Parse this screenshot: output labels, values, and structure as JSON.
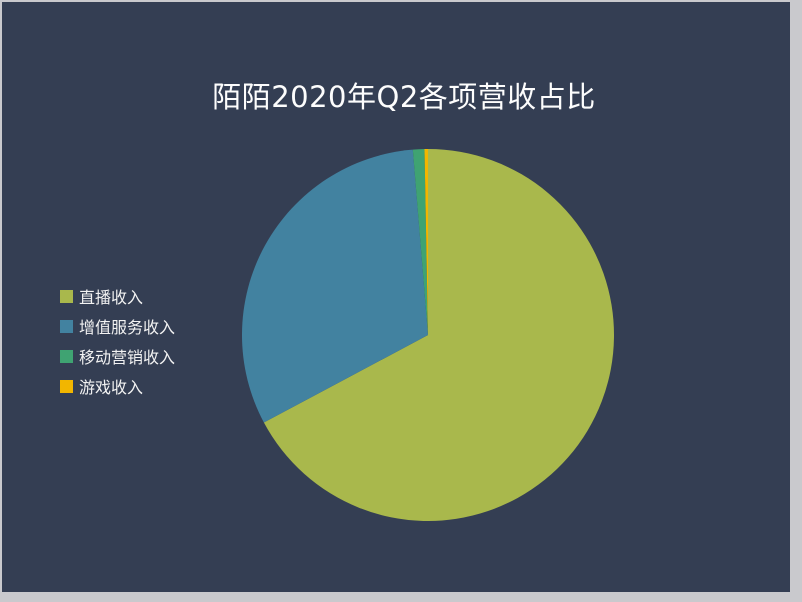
{
  "title": "陌陌2020年Q2各项营收占比",
  "colors": {
    "frame": "#c9c9cd",
    "panel_background": "#343e53",
    "title_text": "#fdfdfd",
    "legend_text": "#f2f2f2"
  },
  "chart_data": {
    "type": "pie",
    "title": "陌陌2020年Q2各项营收占比",
    "legend_position": "left",
    "start_angle_deg": 0,
    "direction": "clockwise",
    "data_labels_shown": false,
    "slices": [
      {
        "label": "直播收入",
        "percent": 67.2,
        "color": "#a9b84c"
      },
      {
        "label": "增值服务收入",
        "percent": 31.5,
        "color": "#4282a0"
      },
      {
        "label": "移动营销收入",
        "percent": 1.0,
        "color": "#3fa372"
      },
      {
        "label": "游戏收入",
        "percent": 0.3,
        "color": "#f2b600"
      }
    ]
  }
}
